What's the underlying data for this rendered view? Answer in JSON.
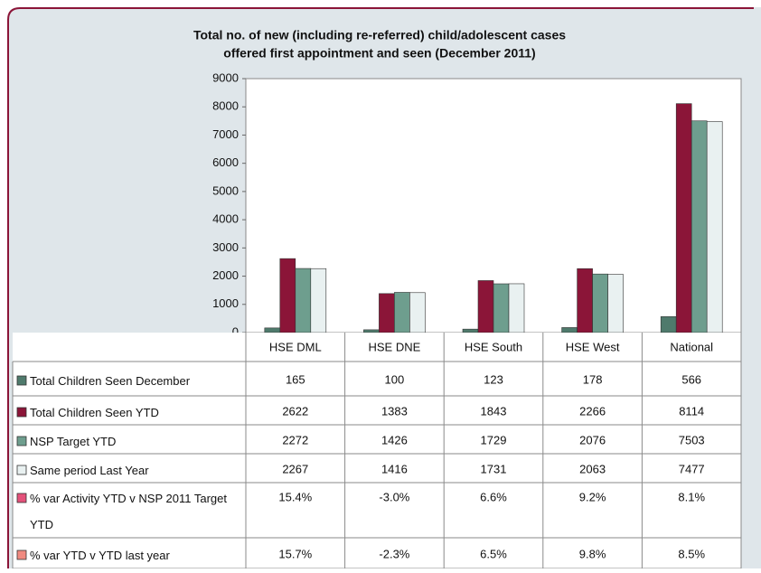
{
  "chart_data": {
    "type": "bar",
    "title": "Total no. of new (including re-referred) child/adolescent cases",
    "subtitle": "offered first appointment and seen (December 2011)",
    "categories": [
      "HSE DML",
      "HSE DNE",
      "HSE South",
      "HSE West",
      "National"
    ],
    "series": [
      {
        "name": "Total Children Seen   December",
        "color": "#4f7a6c",
        "values": [
          165,
          100,
          123,
          178,
          566
        ]
      },
      {
        "name": "Total Children Seen YTD",
        "color": "#8b1538",
        "values": [
          2622,
          1383,
          1843,
          2266,
          8114
        ]
      },
      {
        "name": "NSP Target YTD",
        "color": "#6e9e8e",
        "values": [
          2272,
          1426,
          1729,
          2076,
          7503
        ]
      },
      {
        "name": "Same period Last Year",
        "color": "#e9f1f1",
        "values": [
          2267,
          1416,
          1731,
          2063,
          7477
        ]
      }
    ],
    "table_rows": [
      {
        "name": "% var Activity YTD v NSP 2011 Target YTD",
        "color": "#e4517a",
        "values": [
          15.4,
          -3.0,
          6.6,
          9.2,
          8.1
        ],
        "value_labels": [
          "15.4%",
          "-3.0%",
          "6.6%",
          "9.2%",
          "8.1%"
        ]
      },
      {
        "name": "% var YTD v YTD last year",
        "color": "#f08a80",
        "values": [
          15.7,
          -2.3,
          6.5,
          9.8,
          8.5
        ],
        "value_labels": [
          "15.7%",
          "-2.3%",
          "6.5%",
          "9.8%",
          "8.5%"
        ]
      }
    ],
    "ylim": [
      0,
      9000
    ],
    "yticks": [
      0,
      1000,
      2000,
      3000,
      4000,
      5000,
      6000,
      7000,
      8000,
      9000
    ],
    "grid": false
  }
}
